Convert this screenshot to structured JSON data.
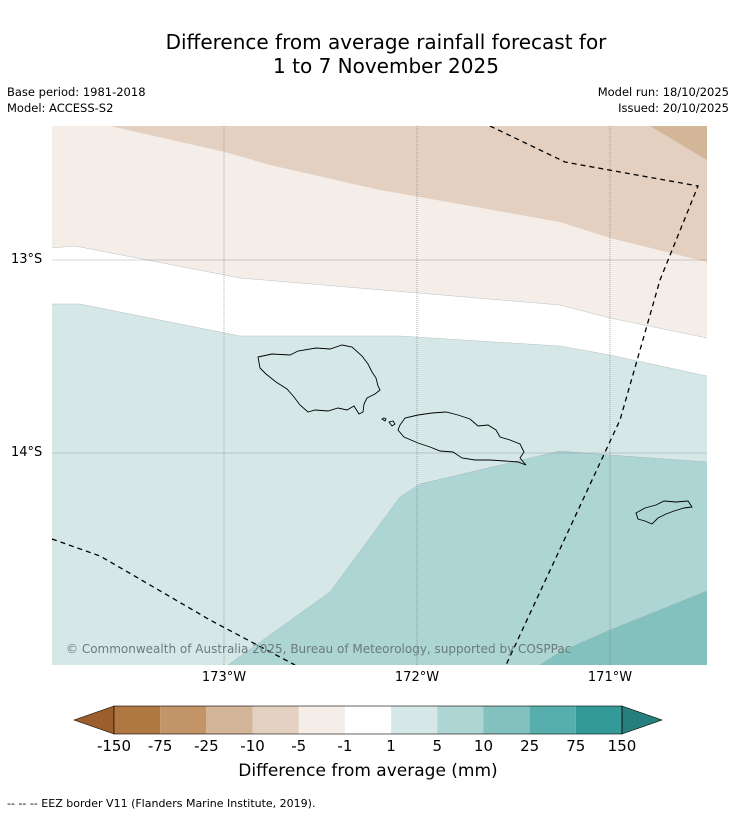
{
  "title": {
    "line1": "Difference from average rainfall forecast for",
    "line2": "1 to 7 November 2025"
  },
  "meta": {
    "base_period": "Base period: 1981-2018",
    "model": "Model: ACCESS-S2",
    "model_run": "Model run: 18/10/2025",
    "issued": "Issued: 20/10/2025"
  },
  "map": {
    "lat_labels": [
      "13°S",
      "14°S"
    ],
    "lon_labels": [
      "173°W",
      "172°W",
      "171°W"
    ],
    "copyright": "© Commonwealth of Australia 2025, Bureau of Meteorology, supported by COSPPac",
    "region_colors": {
      "minus10_to_minus5": "#e3d0c0",
      "minus25_to_minus10": "#d3b597",
      "minus5_to_minus1": "#f4ede8",
      "minus1_to_1": "#ffffff",
      "1_to_5": "#d5e8e7",
      "5_to_10": "#acd5d4",
      "10_to_25": "#83c1bf"
    }
  },
  "colorbar": {
    "title": "Difference from average (mm)",
    "ticks": [
      "-150",
      "-75",
      "-25",
      "-10",
      "-5",
      "-1",
      "1",
      "5",
      "10",
      "25",
      "75",
      "150"
    ],
    "colors": [
      "#9c5f2c",
      "#b07841",
      "#c39467",
      "#d3b597",
      "#e3d0c0",
      "#f4ede8",
      "#ffffff",
      "#d5e8e7",
      "#acd5d4",
      "#83c1bf",
      "#57aeac",
      "#339a98",
      "#277e7c"
    ]
  },
  "footer": "--  --  -- EEZ border V11 (Flanders Marine Institute, 2019)."
}
